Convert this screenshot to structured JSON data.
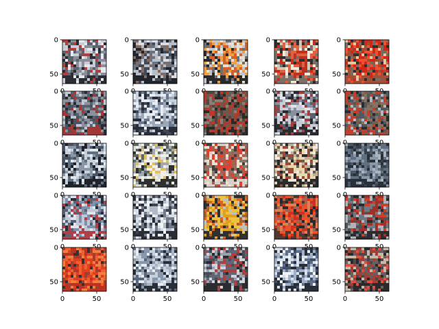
{
  "figure": {
    "rows": 5,
    "cols": 5,
    "background": "#ffffff",
    "axis_color": "#000000"
  },
  "chart_data": {
    "type": "image-grid",
    "title": "",
    "xlabel": "",
    "ylabel": "",
    "xlim": [
      0,
      64
    ],
    "ylim": [
      64,
      0
    ],
    "image_size": [
      64,
      64
    ],
    "x_ticks": [
      0,
      50
    ],
    "y_ticks": [
      0,
      50
    ],
    "x_tick_labels": [
      "0",
      "50"
    ],
    "y_tick_labels": [
      "0",
      "50"
    ],
    "grid": false,
    "legend": "none",
    "tiles": [
      {
        "row": 0,
        "col": 0,
        "palette": [
          "#8a8e98",
          "#c7ccd6",
          "#2b2d33",
          "#5c6470",
          "#b04040",
          "#e6e9ef"
        ]
      },
      {
        "row": 0,
        "col": 1,
        "palette": [
          "#6b7380",
          "#b8bec8",
          "#22252b",
          "#8a6a5a",
          "#d8dde4",
          "#444a55"
        ]
      },
      {
        "row": 0,
        "col": 2,
        "palette": [
          "#d2612a",
          "#f0a040",
          "#2a2a2a",
          "#6f6f6f",
          "#c0c6d0",
          "#e8e0d0"
        ]
      },
      {
        "row": 0,
        "col": 3,
        "palette": [
          "#c03020",
          "#e06040",
          "#7a7068",
          "#d0c8b8",
          "#303030",
          "#f0e8d8"
        ]
      },
      {
        "row": 0,
        "col": 4,
        "palette": [
          "#d02818",
          "#f05030",
          "#a05038",
          "#303030",
          "#7a6a60",
          "#e0c8a0"
        ]
      },
      {
        "row": 1,
        "col": 0,
        "palette": [
          "#5a6270",
          "#8a929e",
          "#a03838",
          "#2a2d33",
          "#c0c6cf",
          "#4a5260"
        ]
      },
      {
        "row": 1,
        "col": 1,
        "palette": [
          "#e8ecf2",
          "#9aa8b8",
          "#2a2e36",
          "#6a7890",
          "#c8d2de",
          "#404858"
        ]
      },
      {
        "row": 1,
        "col": 2,
        "palette": [
          "#6a5a50",
          "#a04030",
          "#2a2a2a",
          "#888078",
          "#c03828",
          "#504840"
        ]
      },
      {
        "row": 1,
        "col": 3,
        "palette": [
          "#8890a0",
          "#c8ccd4",
          "#2a2c30",
          "#a04040",
          "#e0e4ea",
          "#5a606c"
        ]
      },
      {
        "row": 1,
        "col": 4,
        "palette": [
          "#505860",
          "#8a7060",
          "#c04030",
          "#2a2c30",
          "#b0b8c0",
          "#706050"
        ]
      },
      {
        "row": 2,
        "col": 0,
        "palette": [
          "#8a98a8",
          "#c8d0da",
          "#20242a",
          "#4a5666",
          "#e0e6ee",
          "#607080"
        ]
      },
      {
        "row": 2,
        "col": 1,
        "palette": [
          "#f0f0e8",
          "#e0c060",
          "#303030",
          "#a0a8b0",
          "#d8dcd8",
          "#606860"
        ]
      },
      {
        "row": 2,
        "col": 2,
        "palette": [
          "#a86050",
          "#e04030",
          "#d8d0c8",
          "#404040",
          "#887868",
          "#f0e0d0"
        ]
      },
      {
        "row": 2,
        "col": 3,
        "palette": [
          "#e8d8b0",
          "#a04838",
          "#2a2a2a",
          "#c0b090",
          "#f0e8e0",
          "#686058"
        ]
      },
      {
        "row": 2,
        "col": 4,
        "palette": [
          "#607080",
          "#8898a8",
          "#2a3038",
          "#4a5868",
          "#a8b4c0",
          "#384048"
        ]
      },
      {
        "row": 3,
        "col": 0,
        "palette": [
          "#8090a8",
          "#c0c8d8",
          "#b04048",
          "#2a2e38",
          "#5a6478",
          "#e0e4ec"
        ]
      },
      {
        "row": 3,
        "col": 1,
        "palette": [
          "#f0f2f4",
          "#b0bac8",
          "#2a2d33",
          "#707a88",
          "#d8dee6",
          "#404650"
        ]
      },
      {
        "row": 3,
        "col": 2,
        "palette": [
          "#e0a020",
          "#f0c040",
          "#303030",
          "#a86030",
          "#c0c0b8",
          "#e06020"
        ]
      },
      {
        "row": 3,
        "col": 3,
        "palette": [
          "#d03020",
          "#f05028",
          "#503830",
          "#a86050",
          "#2a2a2a",
          "#e08050"
        ]
      },
      {
        "row": 3,
        "col": 4,
        "palette": [
          "#707880",
          "#a03028",
          "#2a2c30",
          "#b0b4b8",
          "#c84030",
          "#505458"
        ]
      },
      {
        "row": 4,
        "col": 0,
        "palette": [
          "#e04020",
          "#f06030",
          "#c03020",
          "#3a3030",
          "#a04030",
          "#f08040"
        ]
      },
      {
        "row": 4,
        "col": 1,
        "palette": [
          "#c8d0dc",
          "#8898ac",
          "#2a2e36",
          "#e8ecf2",
          "#5a687c",
          "#a8b4c4"
        ]
      },
      {
        "row": 4,
        "col": 2,
        "palette": [
          "#606878",
          "#b04040",
          "#2a2c30",
          "#9aa0ac",
          "#d0d4da",
          "#484e58"
        ]
      },
      {
        "row": 4,
        "col": 3,
        "palette": [
          "#a0b0c8",
          "#d8e0ea",
          "#2a2e36",
          "#607088",
          "#f0f2f6",
          "#405068"
        ]
      },
      {
        "row": 4,
        "col": 4,
        "palette": [
          "#6a6060",
          "#a04038",
          "#2a2a2c",
          "#c8b8a8",
          "#e05040",
          "#504848"
        ]
      }
    ]
  }
}
